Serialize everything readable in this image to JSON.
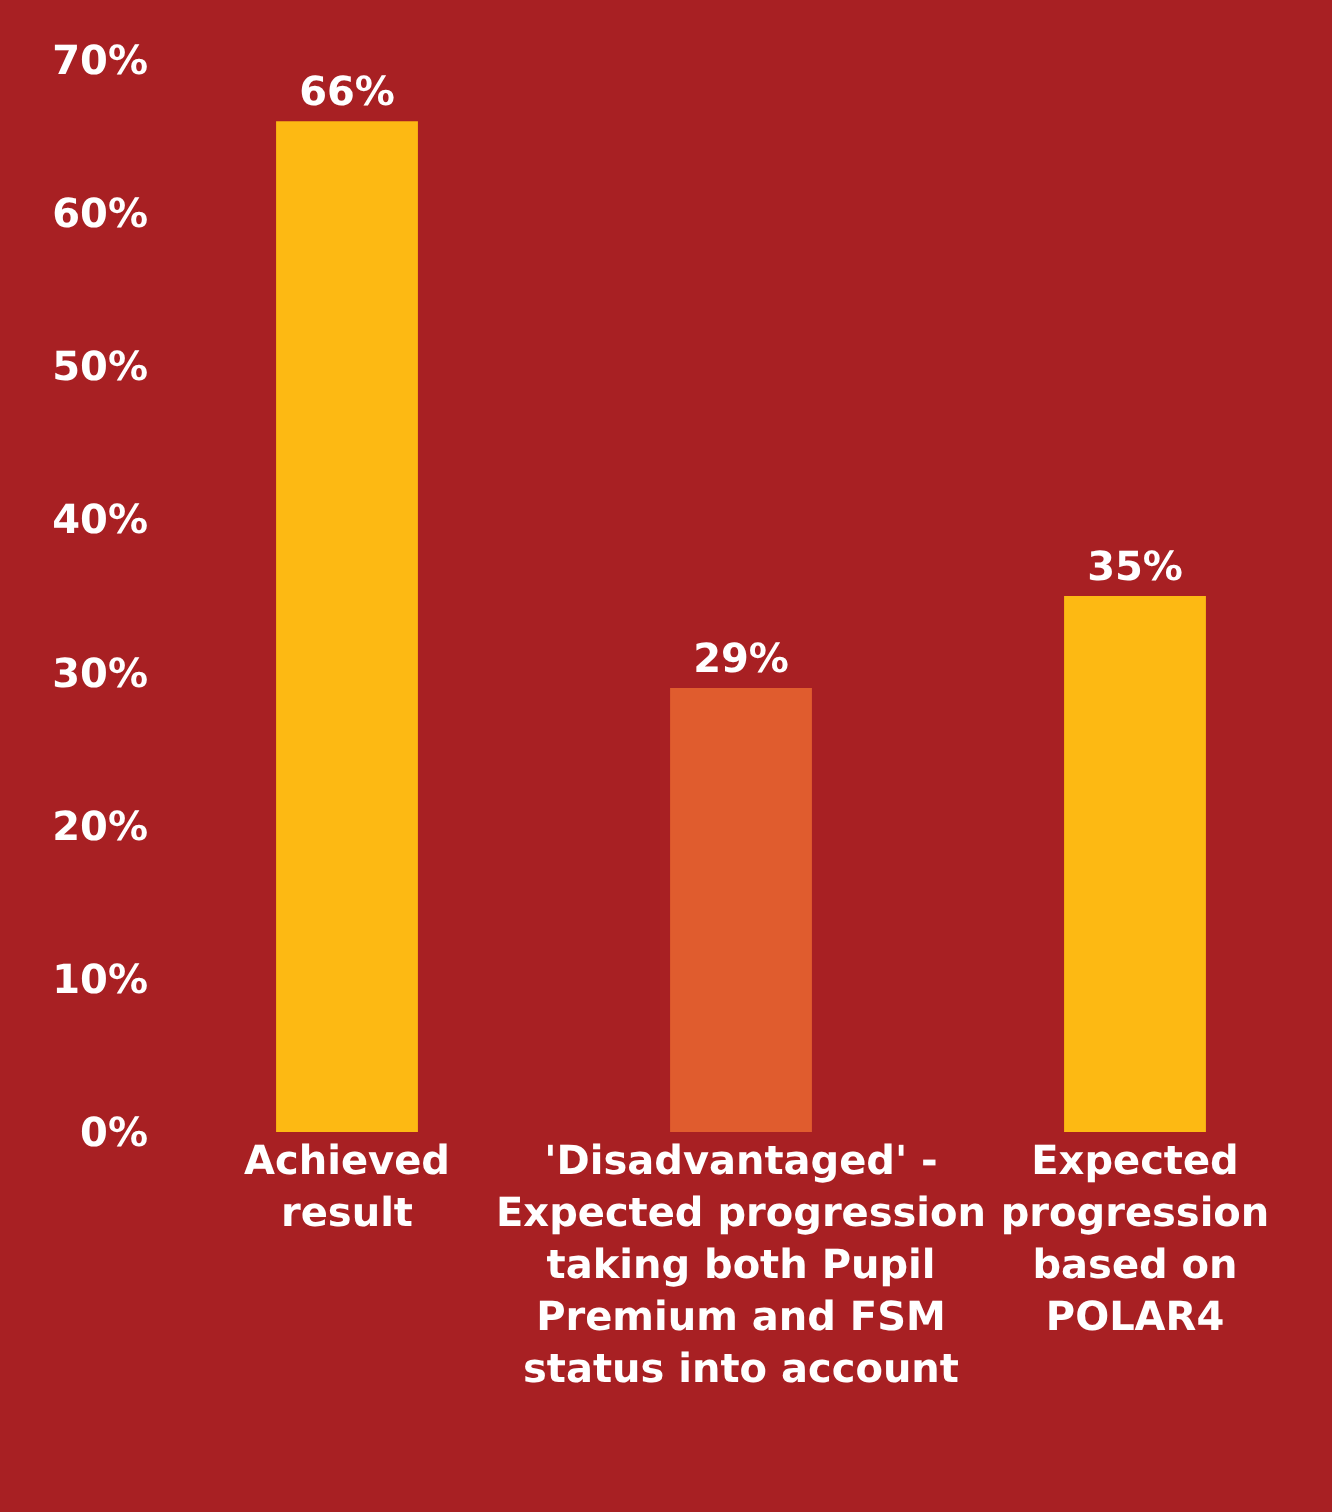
{
  "chart_data": {
    "type": "bar",
    "categories": [
      "Achieved result",
      "'Disadvantaged' - Expected progression taking both Pupil Premium and FSM status into account",
      "Expected progression based on POLAR4"
    ],
    "values": [
      66,
      29,
      35
    ],
    "colors": [
      "#fdb913",
      "#e05c2e",
      "#fdb913"
    ],
    "value_labels": [
      "66%",
      "29%",
      "35%"
    ],
    "ylim": [
      0,
      70
    ],
    "yticks": [
      {
        "value": 0,
        "label": "0%"
      },
      {
        "value": 10,
        "label": "10%"
      },
      {
        "value": 20,
        "label": "20%"
      },
      {
        "value": 30,
        "label": "30%"
      },
      {
        "value": 40,
        "label": "40%"
      },
      {
        "value": 50,
        "label": "50%"
      },
      {
        "value": 60,
        "label": "60%"
      },
      {
        "value": 70,
        "label": "70%"
      }
    ],
    "grid": false,
    "legend": false
  }
}
